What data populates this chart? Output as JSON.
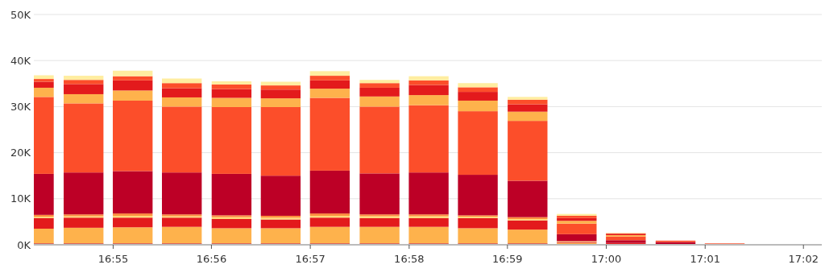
{
  "chart_data": {
    "type": "bar",
    "stacked": true,
    "grid": "y",
    "x": [
      16.9033,
      16.9117,
      16.92,
      16.9283,
      16.9367,
      16.945,
      16.9533,
      16.9617,
      16.97,
      16.9783,
      16.9867,
      16.995,
      17.0033,
      17.0117,
      17.02
    ],
    "xlim": [
      16.9033,
      17.0364
    ],
    "xticks": [
      {
        "value": 16.9167,
        "label": "16:55"
      },
      {
        "value": 16.9333,
        "label": "16:56"
      },
      {
        "value": 16.95,
        "label": "16:57"
      },
      {
        "value": 16.9667,
        "label": "16:58"
      },
      {
        "value": 16.9833,
        "label": "16:59"
      },
      {
        "value": 17,
        "label": "17:00"
      },
      {
        "value": 17.0167,
        "label": "17:01"
      },
      {
        "value": 17.0333,
        "label": "17:02"
      }
    ],
    "ylim": [
      0,
      50
    ],
    "yticks": [
      {
        "value": 0,
        "label": "0K"
      },
      {
        "value": 10,
        "label": "10K"
      },
      {
        "value": 20,
        "label": "20K"
      },
      {
        "value": 30,
        "label": "30K"
      },
      {
        "value": 40,
        "label": "40K"
      },
      {
        "value": 50,
        "label": "50K"
      }
    ],
    "series": [
      {
        "color": "#bd0026",
        "values": [
          0.3,
          0.3,
          0.3,
          0.3,
          0.3,
          0.3,
          0.3,
          0.3,
          0.3,
          0.3,
          0.3,
          0.1,
          null,
          0,
          0
        ]
      },
      {
        "color": "#feb24c",
        "values": [
          3.2,
          3.4,
          3.5,
          3.6,
          3.3,
          3.3,
          3.6,
          3.6,
          3.6,
          3.3,
          3.0,
          0.3,
          0.1,
          0,
          0
        ]
      },
      {
        "color": "#e31a1c",
        "values": [
          2.3,
          2.2,
          2.1,
          2.0,
          2.0,
          1.9,
          2.0,
          1.9,
          1.9,
          2.2,
          2.0,
          0.2,
          0.3,
          0,
          0
        ]
      },
      {
        "color": "#fed976",
        "values": [
          0.3,
          0.3,
          0.4,
          0.3,
          0.4,
          0.4,
          0.4,
          0.4,
          0.4,
          0.3,
          0.3,
          0.1,
          0,
          0,
          0
        ]
      },
      {
        "color": "#fd8d3c",
        "values": [
          0.4,
          0.4,
          0.5,
          0.4,
          0.4,
          0.4,
          0.5,
          0.4,
          0.4,
          0.3,
          0.4,
          0.1,
          0,
          0,
          0
        ]
      },
      {
        "color": "#bd0026",
        "values": [
          8.9,
          9.1,
          9.2,
          9.1,
          9.0,
          8.7,
          9.3,
          8.9,
          9.1,
          8.8,
          7.9,
          1.5,
          0.6,
          0.6,
          0
        ]
      },
      {
        "color": "#fc4e2a",
        "values": [
          16.7,
          15.0,
          15.3,
          14.3,
          14.5,
          14.9,
          15.8,
          14.5,
          14.6,
          13.8,
          13.0,
          2.3,
          0.8,
          0.3,
          0.3
        ]
      },
      {
        "color": "#feb24c",
        "values": [
          2.0,
          2.0,
          2.2,
          2.0,
          2.0,
          1.9,
          2.0,
          2.2,
          2.2,
          2.3,
          2.0,
          0.6,
          0.3,
          0,
          0
        ]
      },
      {
        "color": "#e31a1c",
        "values": [
          1.3,
          2.2,
          2.2,
          2.0,
          1.9,
          1.9,
          1.8,
          1.9,
          2.2,
          1.9,
          1.6,
          0.6,
          0.3,
          0,
          0
        ]
      },
      {
        "color": "#fc4e2a",
        "values": [
          0.6,
          0.9,
          0.9,
          1.1,
          1.0,
          0.9,
          1.0,
          1.0,
          1.0,
          1.0,
          1.0,
          0.5,
          0.1,
          0,
          0
        ]
      },
      {
        "color": "#ffeda0",
        "values": [
          0.8,
          0.9,
          1.2,
          1.0,
          0.7,
          0.8,
          1.0,
          0.7,
          0.9,
          0.9,
          0.6,
          0.4,
          0.1,
          0,
          0
        ]
      }
    ]
  }
}
